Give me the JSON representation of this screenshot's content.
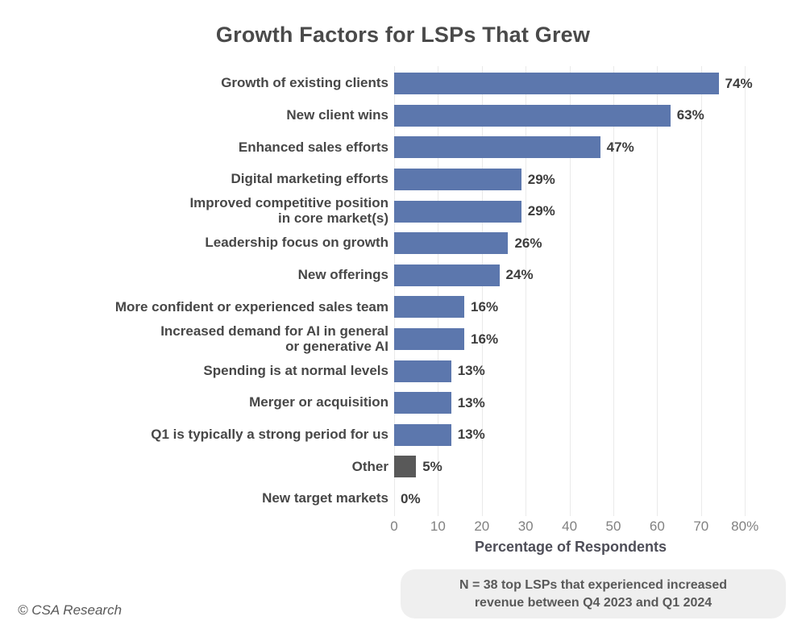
{
  "chart_data": {
    "type": "bar",
    "orientation": "horizontal",
    "title": "Growth Factors for LSPs That Grew",
    "xlabel": "Percentage of Respondents",
    "xlim": [
      0,
      80
    ],
    "x_tick_labels": [
      "0",
      "10",
      "20",
      "30",
      "40",
      "50",
      "60",
      "70",
      "80%"
    ],
    "grid": "vertical-light",
    "legend": "none",
    "categories": [
      "Growth of existing clients",
      "New client wins",
      "Enhanced sales efforts",
      "Digital marketing efforts",
      "Improved competitive position\nin core market(s)",
      "Leadership focus on growth",
      "New offerings",
      "More confident or experienced sales team",
      "Increased demand for AI in general\nor generative AI",
      "Spending is at normal levels",
      "Merger or acquisition",
      "Q1 is typically a strong period for us",
      "Other",
      "New target markets"
    ],
    "values": [
      74,
      63,
      47,
      29,
      29,
      26,
      24,
      16,
      16,
      13,
      13,
      13,
      5,
      0
    ],
    "value_labels": [
      "74%",
      "63%",
      "47%",
      "29%",
      "29%",
      "26%",
      "24%",
      "16%",
      "16%",
      "13%",
      "13%",
      "13%",
      "5%",
      "0%"
    ],
    "bar_colors": [
      "#5c77ad",
      "#5c77ad",
      "#5c77ad",
      "#5c77ad",
      "#5c77ad",
      "#5c77ad",
      "#5c77ad",
      "#5c77ad",
      "#5c77ad",
      "#5c77ad",
      "#5c77ad",
      "#5c77ad",
      "#595959",
      "#5c77ad"
    ],
    "accent_color": "#5c77ad",
    "other_bar_color": "#595959"
  },
  "note": {
    "text": "N = 38 top LSPs that experienced increased\nrevenue between Q4 2023 and Q1 2024"
  },
  "footer": {
    "text": "© CSA Research"
  }
}
